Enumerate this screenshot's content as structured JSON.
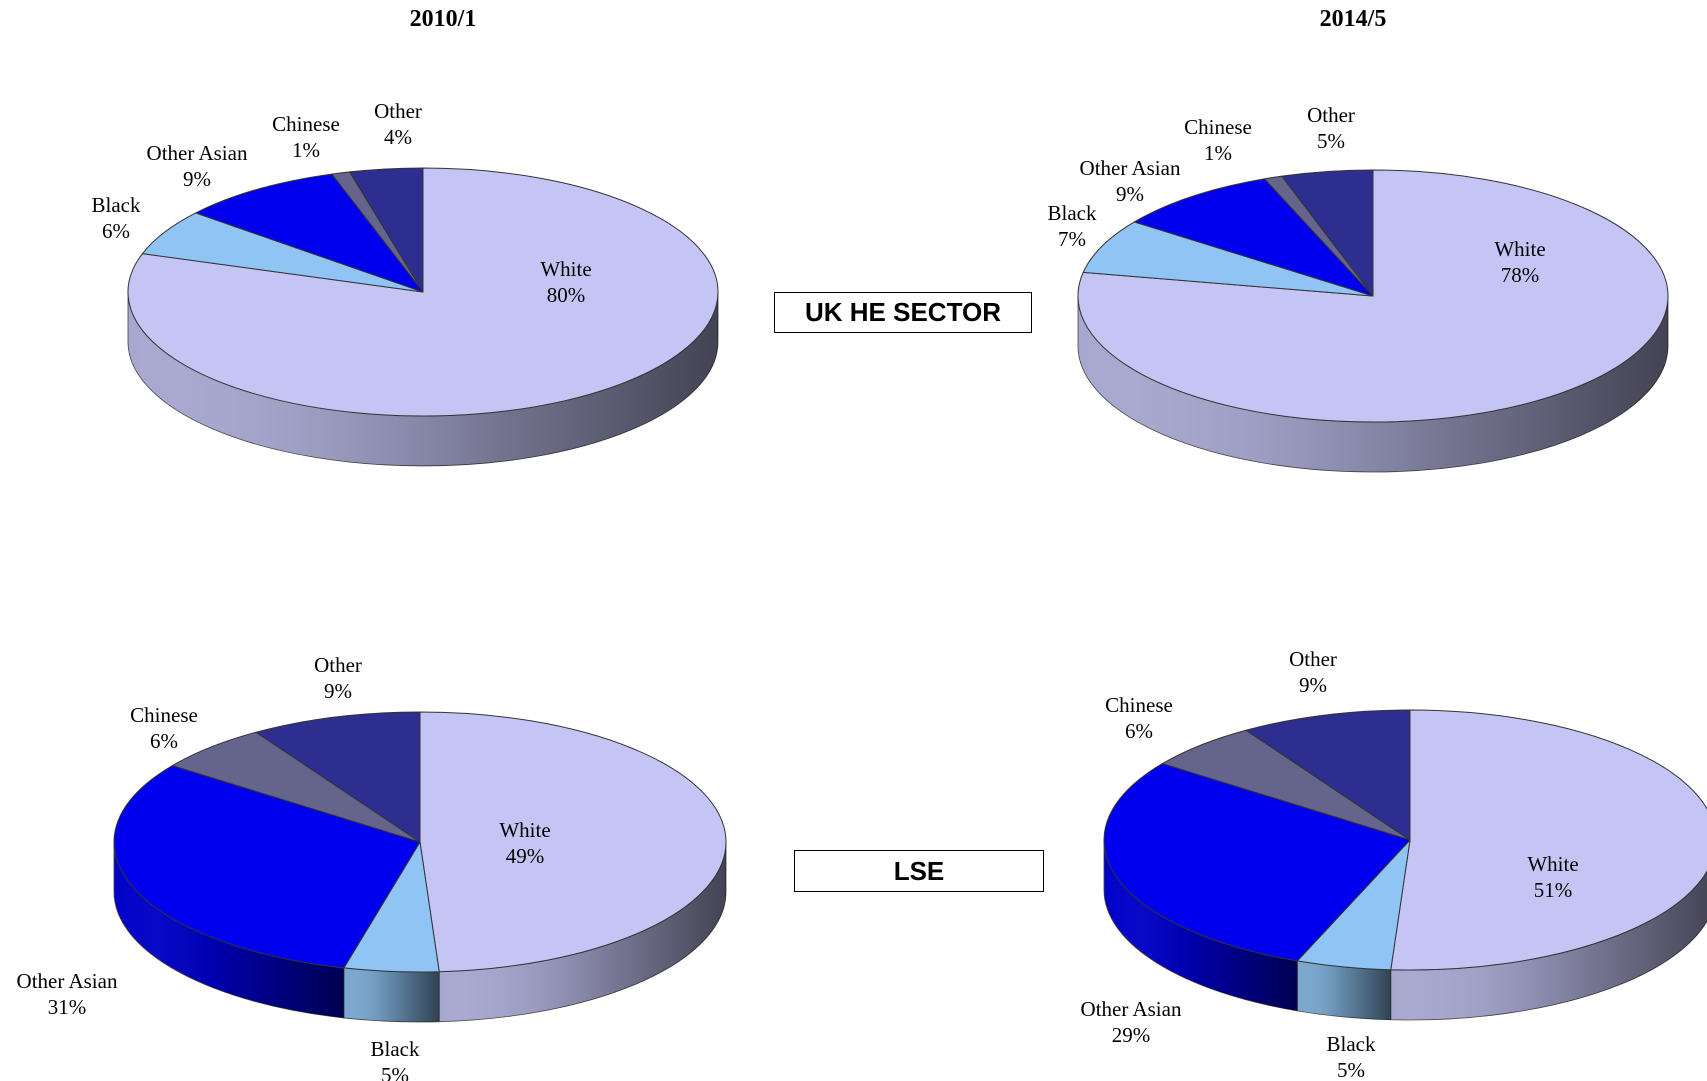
{
  "periods": [
    "2010/1",
    "2014/5"
  ],
  "groups": [
    "UK HE SECTOR",
    "LSE"
  ],
  "colors": {
    "White": "#c5c5f5",
    "Black": "#8fc4f4",
    "Other Asian": "#0000ee",
    "Chinese": "#64648c",
    "Other": "#2e2e90"
  },
  "chart_data": [
    {
      "type": "pie",
      "group": "UK HE SECTOR",
      "period": "2010/1",
      "categories": [
        "White",
        "Black",
        "Other Asian",
        "Chinese",
        "Other"
      ],
      "values": [
        80,
        6,
        9,
        1,
        4
      ],
      "labels": [
        "80%",
        "6%",
        "9%",
        "1%",
        "4%"
      ]
    },
    {
      "type": "pie",
      "group": "UK HE SECTOR",
      "period": "2014/5",
      "categories": [
        "White",
        "Black",
        "Other Asian",
        "Chinese",
        "Other"
      ],
      "values": [
        78,
        7,
        9,
        1,
        5
      ],
      "labels": [
        "78%",
        "7%",
        "9%",
        "1%",
        "5%"
      ]
    },
    {
      "type": "pie",
      "group": "LSE",
      "period": "2010/1",
      "categories": [
        "White",
        "Black",
        "Other Asian",
        "Chinese",
        "Other"
      ],
      "values": [
        49,
        5,
        31,
        6,
        9
      ],
      "labels": [
        "49%",
        "5%",
        "31%",
        "6%",
        "9%"
      ]
    },
    {
      "type": "pie",
      "group": "LSE",
      "period": "2014/5",
      "categories": [
        "White",
        "Black",
        "Other Asian",
        "Chinese",
        "Other"
      ],
      "values": [
        51,
        5,
        29,
        6,
        9
      ],
      "labels": [
        "51%",
        "5%",
        "29%",
        "6%",
        "9%"
      ]
    }
  ]
}
